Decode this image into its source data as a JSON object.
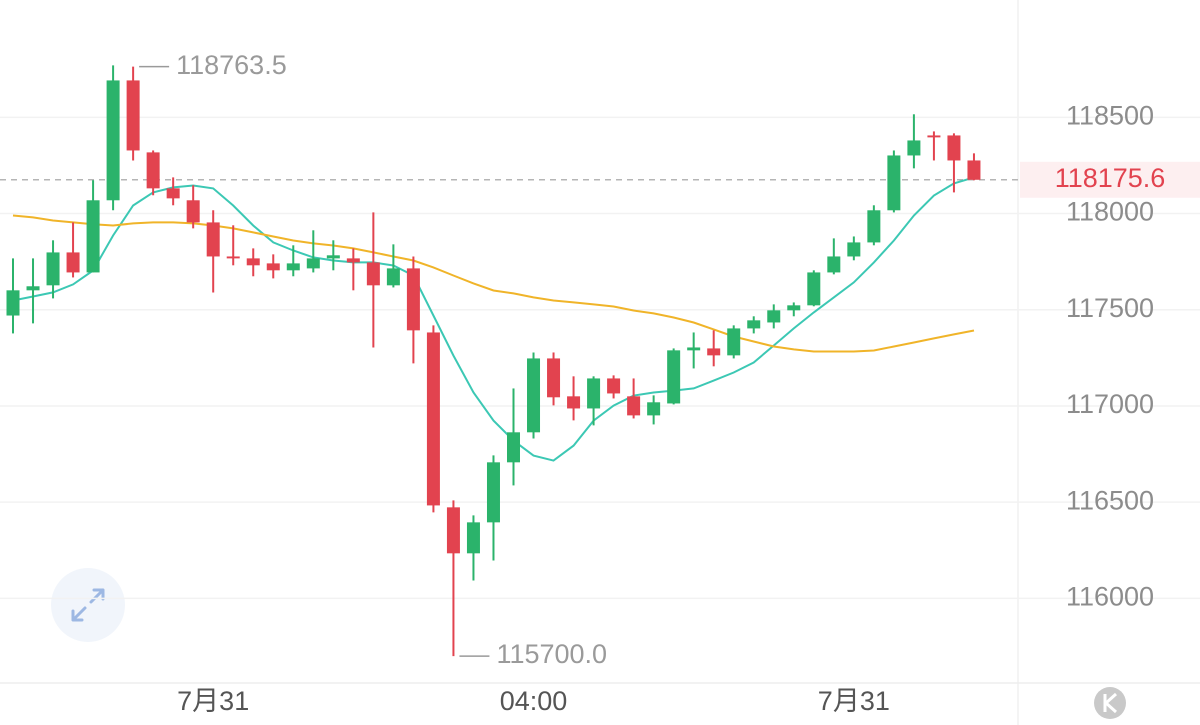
{
  "chart_data": {
    "type": "candlestick",
    "up_color": "#2bb36b",
    "down_color": "#e2434f",
    "ylim": [
      115560,
      119110
    ],
    "yticks": [
      116000,
      116500,
      117000,
      117500,
      118000,
      118500
    ],
    "grid": true,
    "xticks": [
      {
        "value": 10,
        "label": "7月31"
      },
      {
        "value": 26,
        "label": "04:00"
      },
      {
        "value": 42,
        "label": "7月31"
      }
    ],
    "open": [
      117470,
      117601,
      117627,
      117798,
      117694,
      118069,
      118692,
      118318,
      118131,
      118069,
      117954,
      117777,
      117767,
      117741,
      117705,
      117715,
      117767,
      117767,
      117746,
      117627,
      117715,
      117382,
      116473,
      116234,
      116395,
      116707,
      116863,
      117247,
      117050,
      116987,
      117143,
      117050,
      116951,
      117013,
      117289,
      117299,
      117263,
      117403,
      117434,
      117497,
      117523,
      117694,
      117777,
      117850,
      118017,
      118302,
      118406,
      118406,
      118276
    ],
    "high": [
      117767,
      117767,
      117861,
      117954,
      118173,
      118770,
      118763.5,
      118328,
      118188,
      118147,
      118017,
      117939,
      117819,
      117788,
      117835,
      117913,
      117861,
      117819,
      118006,
      117840,
      117777,
      117419,
      116509,
      116431,
      116743,
      117091,
      117278,
      117278,
      117154,
      117154,
      117159,
      117143,
      117055,
      117299,
      117382,
      117393,
      117419,
      117466,
      117528,
      117538,
      117705,
      117871,
      117881,
      118043,
      118328,
      118516,
      118427,
      118417,
      118313
    ],
    "low": [
      117377,
      117429,
      117559,
      117668,
      117694,
      118017,
      118276,
      118095,
      118043,
      117923,
      117590,
      117731,
      117674,
      117663,
      117674,
      117694,
      117705,
      117601,
      117304,
      117616,
      117221,
      116447,
      115700,
      116093,
      116197,
      116587,
      116831,
      117003,
      116925,
      116899,
      117039,
      116935,
      116904,
      117008,
      117195,
      117206,
      117247,
      117377,
      117403,
      117466,
      117518,
      117684,
      117757,
      117835,
      118006,
      118235,
      118276,
      118110,
      118173
    ],
    "close": [
      117601,
      117622,
      117798,
      117694,
      118069,
      118692,
      118328,
      118131,
      118079,
      117954,
      117777,
      117767,
      117731,
      117705,
      117741,
      117767,
      117783,
      117746,
      117627,
      117715,
      117393,
      116483,
      116234,
      116395,
      116707,
      116863,
      117247,
      117045,
      116987,
      117143,
      117065,
      116951,
      117019,
      117289,
      117304,
      117263,
      117403,
      117445,
      117497,
      117523,
      117694,
      117777,
      117850,
      118017,
      118302,
      118380,
      118396,
      118276,
      118175.6
    ],
    "lines": [
      {
        "color": "#3cc8b4",
        "values": [
          117548,
          117569,
          117590,
          117632,
          117704,
          117886,
          118042,
          118110,
          118136,
          118146,
          118131,
          118042,
          117938,
          117850,
          117808,
          117772,
          117756,
          117746,
          117746,
          117730,
          117678,
          117470,
          117262,
          117070,
          116924,
          116820,
          116742,
          116716,
          116794,
          116924,
          117002,
          117054,
          117070,
          117080,
          117091,
          117132,
          117174,
          117226,
          117314,
          117403,
          117486,
          117564,
          117642,
          117746,
          117860,
          117990,
          118094,
          118157,
          118188
        ]
      },
      {
        "color": "#f0b429",
        "values": [
          117990,
          117980,
          117964,
          117954,
          117944,
          117938,
          117949,
          117954,
          117954,
          117949,
          117938,
          117923,
          117902,
          117881,
          117860,
          117845,
          117834,
          117819,
          117798,
          117777,
          117756,
          117720,
          117678,
          117637,
          117600,
          117585,
          117564,
          117548,
          117538,
          117528,
          117517,
          117496,
          117481,
          117460,
          117434,
          117398,
          117361,
          117335,
          117309,
          117294,
          117283,
          117283,
          117283,
          117288,
          117309,
          117330,
          117351,
          117372,
          117392
        ]
      }
    ],
    "annotations": [
      {
        "index": 6,
        "value": 118763.5,
        "label": "118763.5"
      },
      {
        "index": 22,
        "value": 115700,
        "label": "115700.0"
      }
    ],
    "last_price": {
      "value": 118175.6,
      "label": "118175.6"
    }
  }
}
